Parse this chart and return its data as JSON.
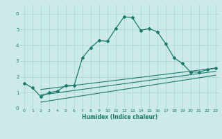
{
  "xlabel": "Humidex (Indice chaleur)",
  "background_color": "#cceaea",
  "grid_color": "#aad4d4",
  "line_color": "#1a7a6a",
  "xlim": [
    -0.5,
    23.5
  ],
  "ylim": [
    0,
    6.6
  ],
  "yticks": [
    0,
    1,
    2,
    3,
    4,
    5,
    6
  ],
  "xticks": [
    0,
    1,
    2,
    3,
    4,
    5,
    6,
    7,
    8,
    9,
    10,
    11,
    12,
    13,
    14,
    15,
    16,
    17,
    18,
    19,
    20,
    21,
    22,
    23
  ],
  "line1_x": [
    0,
    1,
    2,
    3,
    4,
    5,
    6,
    7,
    8,
    9,
    10,
    11,
    12,
    13,
    14,
    15,
    16,
    17,
    18,
    19,
    20,
    21,
    22,
    23
  ],
  "line1_y": [
    1.6,
    1.3,
    0.75,
    1.0,
    1.1,
    1.45,
    1.45,
    3.2,
    3.85,
    4.3,
    4.25,
    5.05,
    5.8,
    5.75,
    4.95,
    5.05,
    4.85,
    4.1,
    3.2,
    2.85,
    2.3,
    2.3,
    2.45,
    2.55
  ],
  "line2_x": [
    2,
    23
  ],
  "line2_y": [
    1.2,
    2.55
  ],
  "line3_x": [
    2,
    23
  ],
  "line3_y": [
    0.85,
    2.35
  ],
  "line4_x": [
    2,
    23
  ],
  "line4_y": [
    0.4,
    2.1
  ]
}
